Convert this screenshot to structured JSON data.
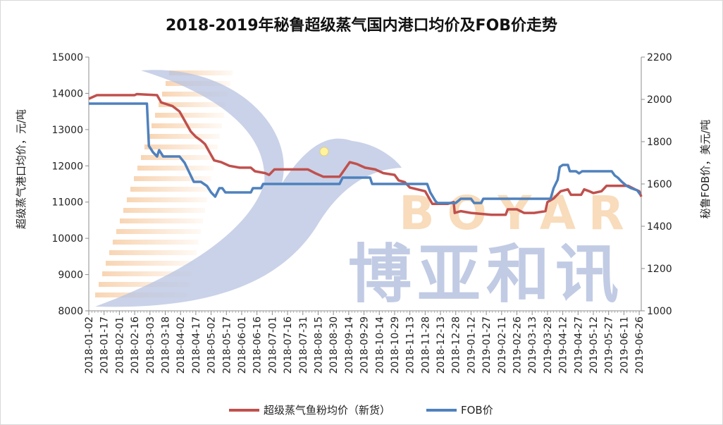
{
  "chart_data": {
    "type": "line",
    "title": "2018-2019年秘鲁超级蒸气国内港口均价及FOB价走势",
    "y_left_label": "超级蒸气港口均价，元/吨",
    "y_right_label": "秘鲁FOB价，美元/吨",
    "y_left_lim": [
      8000,
      15000
    ],
    "y_left_ticks": [
      8000,
      9000,
      10000,
      11000,
      12000,
      13000,
      14000,
      15000
    ],
    "y_right_lim": [
      1000,
      2200
    ],
    "y_right_ticks": [
      1000,
      1200,
      1400,
      1600,
      1800,
      2000,
      2200
    ],
    "x_lim": [
      "2018-01-02",
      "2019-06-28"
    ],
    "x_ticks": [
      "2018-01-02",
      "2018-01-17",
      "2018-02-01",
      "2018-02-16",
      "2018-03-03",
      "2018-03-18",
      "2018-04-02",
      "2018-04-17",
      "2018-05-02",
      "2018-05-17",
      "2018-06-01",
      "2018-06-16",
      "2018-07-01",
      "2018-07-16",
      "2018-07-31",
      "2018-08-15",
      "2018-08-30",
      "2018-09-14",
      "2018-09-29",
      "2018-10-14",
      "2018-10-29",
      "2018-11-13",
      "2018-11-28",
      "2018-12-13",
      "2018-12-28",
      "2019-01-12",
      "2019-01-27",
      "2019-02-11",
      "2019-02-26",
      "2019-03-13",
      "2019-03-28",
      "2019-04-12",
      "2019-04-27",
      "2019-05-12",
      "2019-05-27",
      "2019-06-11",
      "2019-06-26"
    ],
    "grid": false,
    "legend_position": "bottom",
    "series": [
      {
        "name": "超级蒸气鱼粉均价（新货）",
        "color": "#c0504d",
        "axis": "left",
        "points": [
          [
            "2018-01-02",
            13850
          ],
          [
            "2018-01-10",
            13950
          ],
          [
            "2018-02-16",
            13950
          ],
          [
            "2018-02-18",
            13980
          ],
          [
            "2018-03-10",
            13950
          ],
          [
            "2018-03-14",
            13750
          ],
          [
            "2018-03-25",
            13650
          ],
          [
            "2018-04-01",
            13500
          ],
          [
            "2018-04-05",
            13300
          ],
          [
            "2018-04-12",
            12950
          ],
          [
            "2018-04-17",
            12800
          ],
          [
            "2018-04-22",
            12700
          ],
          [
            "2018-04-26",
            12600
          ],
          [
            "2018-05-01",
            12350
          ],
          [
            "2018-05-05",
            12150
          ],
          [
            "2018-05-12",
            12100
          ],
          [
            "2018-05-20",
            12000
          ],
          [
            "2018-05-30",
            11950
          ],
          [
            "2018-06-10",
            11950
          ],
          [
            "2018-06-14",
            11850
          ],
          [
            "2018-06-24",
            11800
          ],
          [
            "2018-06-28",
            11750
          ],
          [
            "2018-07-03",
            11900
          ],
          [
            "2018-07-15",
            11900
          ],
          [
            "2018-08-05",
            11900
          ],
          [
            "2018-08-12",
            11800
          ],
          [
            "2018-08-20",
            11700
          ],
          [
            "2018-09-05",
            11700
          ],
          [
            "2018-09-10",
            11900
          ],
          [
            "2018-09-15",
            12100
          ],
          [
            "2018-09-22",
            12050
          ],
          [
            "2018-09-30",
            11950
          ],
          [
            "2018-10-10",
            11900
          ],
          [
            "2018-10-18",
            11800
          ],
          [
            "2018-10-29",
            11750
          ],
          [
            "2018-11-02",
            11600
          ],
          [
            "2018-11-08",
            11550
          ],
          [
            "2018-11-13",
            11400
          ],
          [
            "2018-11-28",
            11300
          ],
          [
            "2018-12-03",
            11050
          ],
          [
            "2018-12-05",
            10950
          ],
          [
            "2018-12-20",
            10950
          ],
          [
            "2018-12-26",
            11000
          ],
          [
            "2018-12-27",
            10700
          ],
          [
            "2019-01-02",
            10750
          ],
          [
            "2019-01-12",
            10700
          ],
          [
            "2019-02-01",
            10650
          ],
          [
            "2019-02-15",
            10650
          ],
          [
            "2019-02-17",
            10800
          ],
          [
            "2019-02-26",
            10800
          ],
          [
            "2019-03-05",
            10700
          ],
          [
            "2019-03-15",
            10700
          ],
          [
            "2019-03-26",
            10750
          ],
          [
            "2019-03-28",
            11000
          ],
          [
            "2019-04-03",
            11100
          ],
          [
            "2019-04-10",
            11300
          ],
          [
            "2019-04-17",
            11350
          ],
          [
            "2019-04-20",
            11200
          ],
          [
            "2019-04-30",
            11200
          ],
          [
            "2019-05-03",
            11350
          ],
          [
            "2019-05-08",
            11300
          ],
          [
            "2019-05-12",
            11250
          ],
          [
            "2019-05-20",
            11300
          ],
          [
            "2019-05-25",
            11450
          ],
          [
            "2019-06-15",
            11450
          ],
          [
            "2019-06-22",
            11350
          ],
          [
            "2019-06-26",
            11300
          ],
          [
            "2019-06-28",
            11150
          ]
        ]
      },
      {
        "name": "FOB价",
        "color": "#4f81bd",
        "axis": "right",
        "points": [
          [
            "2018-01-02",
            1980
          ],
          [
            "2018-02-28",
            1980
          ],
          [
            "2018-03-02",
            1780
          ],
          [
            "2018-03-06",
            1750
          ],
          [
            "2018-03-10",
            1730
          ],
          [
            "2018-03-12",
            1760
          ],
          [
            "2018-03-16",
            1730
          ],
          [
            "2018-04-01",
            1730
          ],
          [
            "2018-04-06",
            1700
          ],
          [
            "2018-04-10",
            1660
          ],
          [
            "2018-04-15",
            1610
          ],
          [
            "2018-04-22",
            1610
          ],
          [
            "2018-04-28",
            1590
          ],
          [
            "2018-05-02",
            1560
          ],
          [
            "2018-05-06",
            1540
          ],
          [
            "2018-05-10",
            1580
          ],
          [
            "2018-05-13",
            1580
          ],
          [
            "2018-05-16",
            1560
          ],
          [
            "2018-06-10",
            1560
          ],
          [
            "2018-06-12",
            1580
          ],
          [
            "2018-06-20",
            1580
          ],
          [
            "2018-06-22",
            1600
          ],
          [
            "2018-09-05",
            1600
          ],
          [
            "2018-09-08",
            1630
          ],
          [
            "2018-10-05",
            1630
          ],
          [
            "2018-10-07",
            1600
          ],
          [
            "2018-11-30",
            1600
          ],
          [
            "2018-12-03",
            1560
          ],
          [
            "2018-12-08",
            1520
          ],
          [
            "2018-12-10",
            1510
          ],
          [
            "2018-12-28",
            1510
          ],
          [
            "2019-01-02",
            1530
          ],
          [
            "2019-01-12",
            1530
          ],
          [
            "2019-01-15",
            1510
          ],
          [
            "2019-01-22",
            1510
          ],
          [
            "2019-01-24",
            1530
          ],
          [
            "2019-03-31",
            1530
          ],
          [
            "2019-04-03",
            1580
          ],
          [
            "2019-04-07",
            1620
          ],
          [
            "2019-04-09",
            1680
          ],
          [
            "2019-04-12",
            1690
          ],
          [
            "2019-04-17",
            1690
          ],
          [
            "2019-04-19",
            1660
          ],
          [
            "2019-04-25",
            1660
          ],
          [
            "2019-04-28",
            1650
          ],
          [
            "2019-05-01",
            1660
          ],
          [
            "2019-05-30",
            1660
          ],
          [
            "2019-06-02",
            1640
          ],
          [
            "2019-06-05",
            1630
          ],
          [
            "2019-06-09",
            1610
          ],
          [
            "2019-06-14",
            1590
          ],
          [
            "2019-06-18",
            1580
          ],
          [
            "2019-06-24",
            1570
          ],
          [
            "2019-06-27",
            1550
          ]
        ]
      }
    ]
  },
  "watermark": {
    "latin": "BOYAR",
    "chinese": "博亚和讯"
  }
}
